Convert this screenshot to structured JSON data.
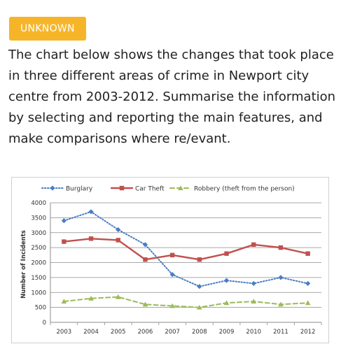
{
  "badge": {
    "label": "UNKNOWN"
  },
  "prompt": {
    "text": "The chart below shows the changes that took place in three different areas of crime in Newport city centre from 2003-2012. Summarise the information by selecting and reporting the main features, and make comparisons where re/evant."
  },
  "colors": {
    "badge": "#f6b529",
    "burglary": "#4a7dc4",
    "car_theft": "#c0504d",
    "robbery": "#9bbb59",
    "grid": "#8c8c8c"
  },
  "chart_data": {
    "type": "line",
    "title": "",
    "xlabel": "",
    "ylabel": "Number of Incidents",
    "categories": [
      "2003",
      "2004",
      "2005",
      "2006",
      "2007",
      "2008",
      "2009",
      "2010",
      "2011",
      "2012"
    ],
    "ylim": [
      0,
      4000
    ],
    "yticks": [
      0,
      500,
      1000,
      1500,
      2000,
      2500,
      3000,
      3500,
      4000
    ],
    "grid": "horizontal",
    "legend": "top",
    "series": [
      {
        "name": "Burglary",
        "color": "#4a7dc4",
        "marker": "diamond",
        "dash": "dotted",
        "values": [
          3400,
          3700,
          3100,
          2600,
          1600,
          1200,
          1400,
          1300,
          1500,
          1300
        ]
      },
      {
        "name": "Car Theft",
        "color": "#c0504d",
        "marker": "square",
        "dash": "solid",
        "values": [
          2700,
          2800,
          2750,
          2100,
          2250,
          2100,
          2300,
          2600,
          2500,
          2300
        ]
      },
      {
        "name": "Robbery (theft from the person)",
        "color": "#9bbb59",
        "marker": "triangle",
        "dash": "dashed",
        "values": [
          700,
          800,
          850,
          600,
          550,
          500,
          650,
          700,
          600,
          650
        ]
      }
    ]
  }
}
